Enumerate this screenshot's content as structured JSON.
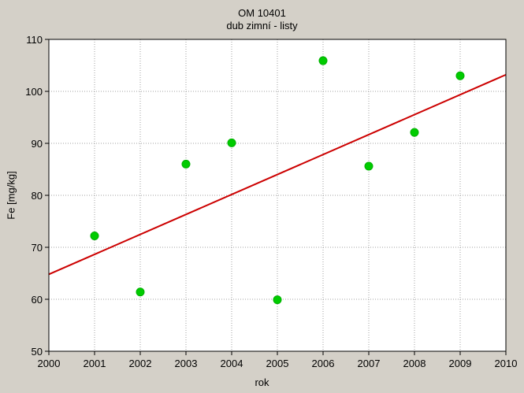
{
  "chart_data": {
    "type": "scatter",
    "title": "OM 10401",
    "subtitle": "dub zimní - listy",
    "xlabel": "rok",
    "ylabel": "Fe [mg/kg]",
    "xlim": [
      2000,
      2010
    ],
    "ylim": [
      50,
      110
    ],
    "x_ticks": [
      2000,
      2001,
      2002,
      2003,
      2004,
      2005,
      2006,
      2007,
      2008,
      2009,
      2010
    ],
    "y_ticks": [
      50,
      60,
      70,
      80,
      90,
      100,
      110
    ],
    "grid": true,
    "points": [
      {
        "x": 2001,
        "y": 72.2
      },
      {
        "x": 2002,
        "y": 61.4
      },
      {
        "x": 2003,
        "y": 86.0
      },
      {
        "x": 2004,
        "y": 90.1
      },
      {
        "x": 2005,
        "y": 59.9
      },
      {
        "x": 2006,
        "y": 105.9
      },
      {
        "x": 2007,
        "y": 85.6
      },
      {
        "x": 2008,
        "y": 92.1
      },
      {
        "x": 2009,
        "y": 103.0
      }
    ],
    "trendline": {
      "x": [
        2000,
        2010
      ],
      "y": [
        64.8,
        103.2
      ]
    },
    "colors": {
      "points": "#00cc00",
      "trendline": "#cc0000",
      "plot_background": "#ffffff",
      "page_background": "#d4d0c8",
      "grid": "#a0a0a0"
    }
  }
}
